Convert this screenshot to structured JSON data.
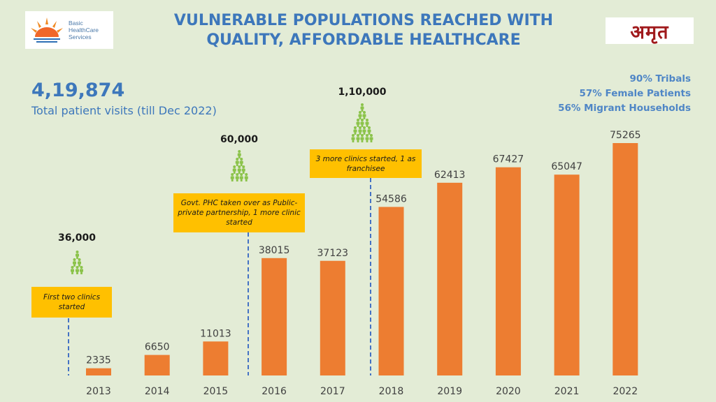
{
  "header": {
    "title_line1": "VULNERABLE POPULATIONS REACHED WITH",
    "title_line2": "QUALITY, AFFORDABLE HEALTHCARE",
    "logo_left": {
      "line1": "Basic",
      "line2": "HealthCare",
      "line3": "Services"
    },
    "logo_right": "अमृत"
  },
  "kpi": {
    "value": "4,19,874",
    "label": "Total patient visits (till Dec 2022)"
  },
  "stats": [
    "90% Tribals",
    "57% Female Patients",
    "56% Migrant Households"
  ],
  "colors": {
    "background": "#e3ecd6",
    "bar": "#ed7d31",
    "title": "#3d77bb",
    "callout": "#ffc000",
    "people": "#8bc34a",
    "dashed_line": "#4472c4"
  },
  "milestones": [
    {
      "year": "2013",
      "count": "36,000",
      "note": "First two clinics started",
      "people_rows": 3
    },
    {
      "year": "2016",
      "count": "60,000",
      "note": "Govt. PHC taken over as Public-private partnership, 1 more clinic started",
      "people_rows": 4
    },
    {
      "year": "2018",
      "count": "1,10,000",
      "note": "3 more clinics started, 1 as franchisee",
      "people_rows": 5
    }
  ],
  "chart_data": {
    "type": "bar",
    "categories": [
      "2013",
      "2014",
      "2015",
      "2016",
      "2017",
      "2018",
      "2019",
      "2020",
      "2021",
      "2022"
    ],
    "values": [
      2335,
      6650,
      11013,
      38015,
      37123,
      54586,
      62413,
      67427,
      65047,
      75265
    ],
    "title": "",
    "xlabel": "",
    "ylabel": "",
    "ylim": [
      0,
      80000
    ],
    "grid": false,
    "legend": "none"
  }
}
